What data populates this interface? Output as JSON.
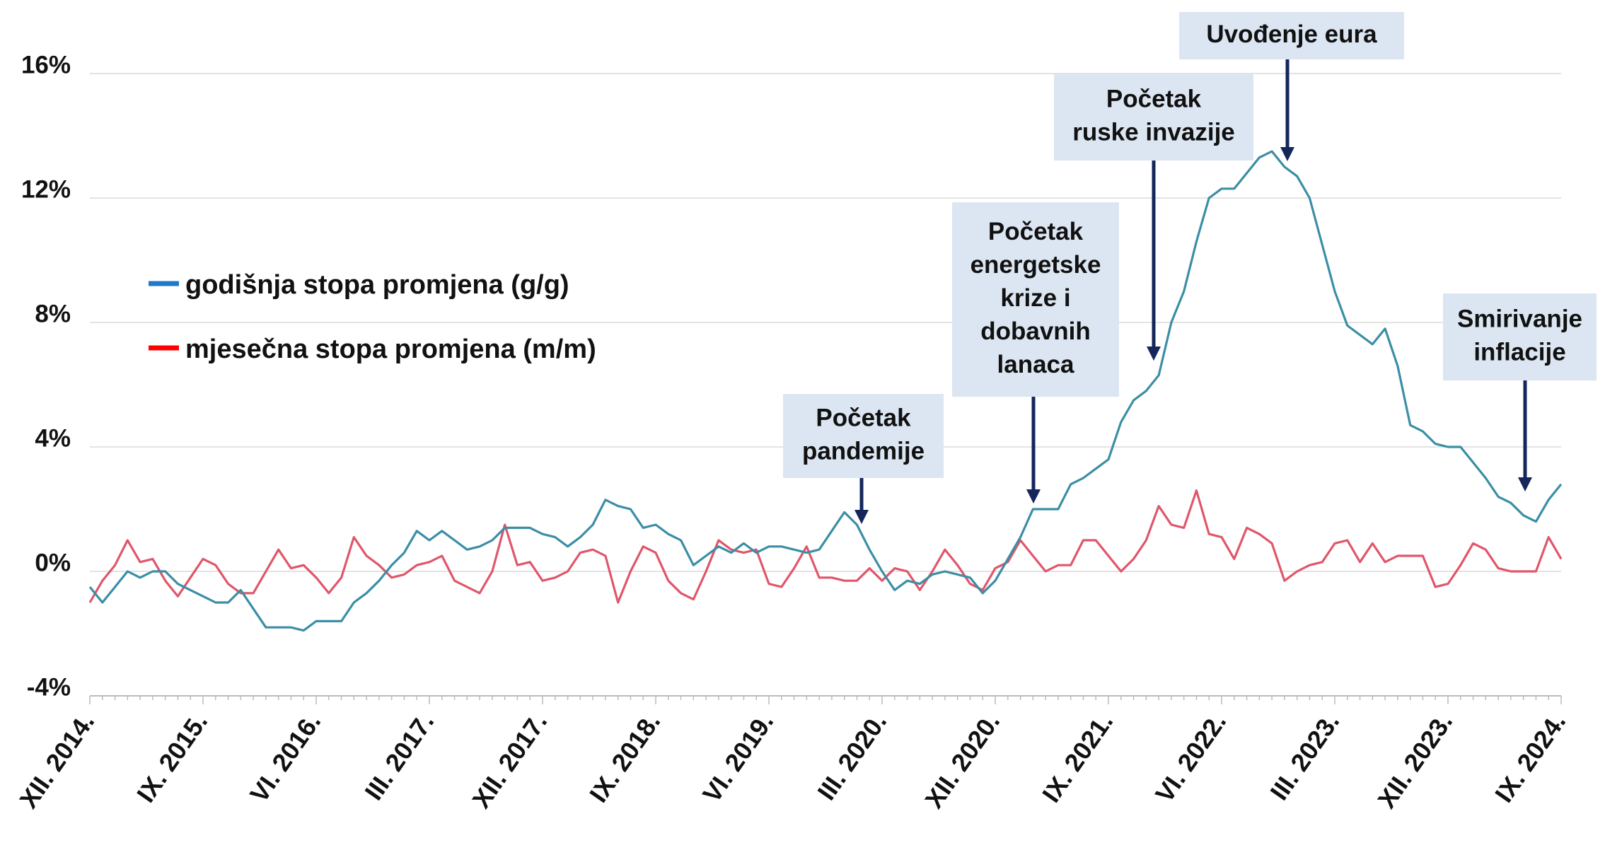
{
  "chart_data": {
    "type": "line",
    "categories": [
      "XII. 2014.",
      null,
      null,
      null,
      null,
      null,
      null,
      null,
      null,
      "IX. 2015.",
      null,
      null,
      null,
      null,
      null,
      null,
      null,
      null,
      "VI. 2016.",
      null,
      null,
      null,
      null,
      null,
      null,
      null,
      null,
      "III. 2017.",
      null,
      null,
      null,
      null,
      null,
      null,
      null,
      null,
      "XII. 2017.",
      null,
      null,
      null,
      null,
      null,
      null,
      null,
      null,
      "IX. 2018.",
      null,
      null,
      null,
      null,
      null,
      null,
      null,
      null,
      "VI. 2019.",
      null,
      null,
      null,
      null,
      null,
      null,
      null,
      null,
      "III. 2020.",
      null,
      null,
      null,
      null,
      null,
      null,
      null,
      null,
      "XII. 2020.",
      null,
      null,
      null,
      null,
      null,
      null,
      null,
      null,
      "IX. 2021.",
      null,
      null,
      null,
      null,
      null,
      null,
      null,
      null,
      "VI. 2022.",
      null,
      null,
      null,
      null,
      null,
      null,
      null,
      null,
      "III. 2023.",
      null,
      null,
      null,
      null,
      null,
      null,
      null,
      null,
      "XII. 2023.",
      null,
      null,
      null,
      null,
      null,
      null,
      null,
      null,
      "IX. 2024."
    ],
    "series": [
      {
        "name": "godišnja stopa promjena (g/g)",
        "color": "#3b8ea5",
        "legend_color": "#1f78c8",
        "values": [
          -0.5,
          -1.0,
          -0.5,
          0.0,
          -0.2,
          0.0,
          0.0,
          -0.4,
          -0.6,
          -0.8,
          -1.0,
          -1.0,
          -0.6,
          -1.2,
          -1.8,
          -1.8,
          -1.8,
          -1.9,
          -1.6,
          -1.6,
          -1.6,
          -1.0,
          -0.7,
          -0.3,
          0.2,
          0.6,
          1.3,
          1.0,
          1.3,
          1.0,
          0.7,
          0.8,
          1.0,
          1.4,
          1.4,
          1.4,
          1.2,
          1.1,
          0.8,
          1.1,
          1.5,
          2.3,
          2.1,
          2.0,
          1.4,
          1.5,
          1.2,
          1.0,
          0.2,
          0.5,
          0.8,
          0.6,
          0.9,
          0.6,
          0.8,
          0.8,
          0.7,
          0.6,
          0.7,
          1.3,
          1.9,
          1.5,
          0.7,
          0.0,
          -0.6,
          -0.3,
          -0.4,
          -0.1,
          0.0,
          -0.1,
          -0.2,
          -0.7,
          -0.3,
          0.4,
          1.1,
          2.0,
          2.0,
          2.0,
          2.8,
          3.0,
          3.3,
          3.6,
          4.8,
          5.5,
          5.8,
          6.3,
          8.0,
          9.0,
          10.6,
          12.0,
          12.3,
          12.3,
          12.8,
          13.3,
          13.5,
          13.0,
          12.7,
          12.0,
          10.5,
          9.0,
          7.9,
          7.6,
          7.3,
          7.8,
          6.6,
          4.7,
          4.5,
          4.1,
          4.0,
          4.0,
          3.5,
          3.0,
          2.4,
          2.2,
          1.8,
          1.6,
          2.3,
          2.8
        ]
      },
      {
        "name": "mjesečna stopa promjena (m/m)",
        "color": "#e0566a",
        "legend_color": "#ff0000",
        "values": [
          -1.0,
          -0.3,
          0.2,
          1.0,
          0.3,
          0.4,
          -0.3,
          -0.8,
          -0.2,
          0.4,
          0.2,
          -0.4,
          -0.7,
          -0.7,
          0.0,
          0.7,
          0.1,
          0.2,
          -0.2,
          -0.7,
          -0.2,
          1.1,
          0.5,
          0.2,
          -0.2,
          -0.1,
          0.2,
          0.3,
          0.5,
          -0.3,
          -0.5,
          -0.7,
          0.0,
          1.5,
          0.2,
          0.3,
          -0.3,
          -0.2,
          0.0,
          0.6,
          0.7,
          0.5,
          -1.0,
          0.0,
          0.8,
          0.6,
          -0.3,
          -0.7,
          -0.9,
          0.0,
          1.0,
          0.7,
          0.6,
          0.7,
          -0.4,
          -0.5,
          0.1,
          0.8,
          -0.2,
          -0.2,
          -0.3,
          -0.3,
          0.1,
          -0.3,
          0.1,
          0.0,
          -0.6,
          0.0,
          0.7,
          0.2,
          -0.4,
          -0.6,
          0.1,
          0.3,
          1.0,
          0.5,
          0.0,
          0.2,
          0.2,
          1.0,
          1.0,
          0.5,
          0.0,
          0.4,
          1.0,
          2.1,
          1.5,
          1.4,
          2.6,
          1.2,
          1.1,
          0.4,
          1.4,
          1.2,
          0.9,
          -0.3,
          0.0,
          0.2,
          0.3,
          0.9,
          1.0,
          0.3,
          0.9,
          0.3,
          0.5,
          0.5,
          0.5,
          -0.5,
          -0.4,
          0.2,
          0.9,
          0.7,
          0.1,
          0.0,
          0.0,
          0.0,
          1.1,
          0.4
        ]
      }
    ],
    "ylim": [
      -4,
      16
    ],
    "yticks": [
      {
        "value": -4,
        "label": "-4%"
      },
      {
        "value": 0,
        "label": "0%"
      },
      {
        "value": 4,
        "label": "4%"
      },
      {
        "value": 8,
        "label": "8%"
      },
      {
        "value": 12,
        "label": "12%"
      },
      {
        "value": 16,
        "label": "16%"
      }
    ],
    "grid": true,
    "legend": "left",
    "annotations": [
      {
        "lines": [
          "Početak",
          "pandemije"
        ]
      },
      {
        "lines": [
          "Početak",
          "energetske",
          "krize i",
          "dobavnih",
          "lanaca"
        ]
      },
      {
        "lines": [
          "Početak",
          "ruske invazije"
        ]
      },
      {
        "lines": [
          "Uvođenje eura"
        ]
      },
      {
        "lines": [
          "Smirivanje",
          "inflacije"
        ]
      }
    ]
  }
}
